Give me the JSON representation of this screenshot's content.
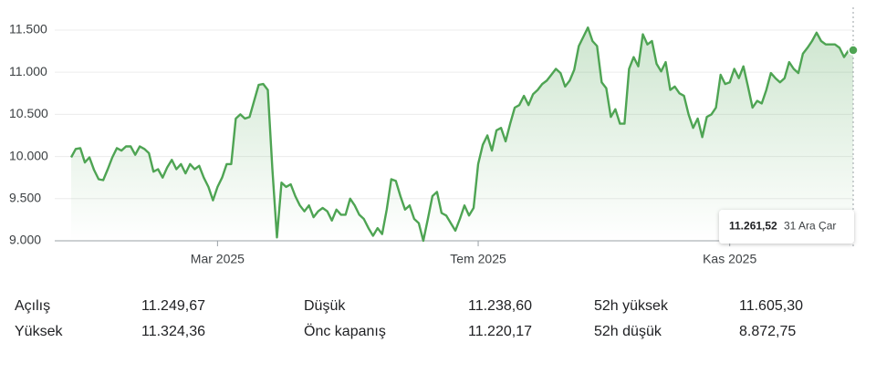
{
  "chart_data": {
    "type": "line",
    "categories": [
      null,
      null,
      null,
      null,
      null,
      null,
      null,
      null,
      null,
      null,
      null,
      null,
      null,
      null,
      null,
      null,
      null,
      null,
      null,
      null,
      null,
      null,
      null,
      null,
      null,
      null,
      null,
      null,
      null,
      null,
      null,
      null,
      "Mar 2025",
      null,
      null,
      null,
      null,
      null,
      null,
      null,
      null,
      null,
      null,
      null,
      null,
      null,
      null,
      null,
      null,
      null,
      null,
      null,
      null,
      null,
      null,
      null,
      null,
      null,
      null,
      null,
      null,
      null,
      null,
      null,
      null,
      null,
      null,
      null,
      null,
      null,
      null,
      null,
      null,
      null,
      null,
      null,
      null,
      null,
      null,
      null,
      null,
      null,
      null,
      null,
      null,
      null,
      null,
      null,
      null,
      "Tem 2025",
      null,
      null,
      null,
      null,
      null,
      null,
      null,
      null,
      null,
      null,
      null,
      null,
      null,
      null,
      null,
      null,
      null,
      null,
      null,
      null,
      null,
      null,
      null,
      null,
      null,
      null,
      null,
      null,
      null,
      null,
      null,
      null,
      null,
      null,
      null,
      null,
      null,
      null,
      null,
      null,
      null,
      null,
      null,
      null,
      null,
      null,
      null,
      null,
      null,
      null,
      null,
      null,
      null,
      null,
      "Kas 2025",
      null,
      null,
      null,
      null,
      null,
      null,
      null,
      null,
      null,
      null,
      null,
      null,
      null,
      null,
      null,
      null,
      null,
      null,
      null,
      null,
      null,
      null,
      null,
      null,
      null,
      null,
      null
    ],
    "series": [
      {
        "color": "#4ea453",
        "values": [
          9990,
          10090,
          10100,
          9930,
          9990,
          9840,
          9730,
          9720,
          9850,
          9990,
          10100,
          10070,
          10120,
          10120,
          10020,
          10120,
          10090,
          10040,
          9820,
          9850,
          9750,
          9870,
          9960,
          9850,
          9910,
          9800,
          9910,
          9850,
          9890,
          9750,
          9640,
          9480,
          9640,
          9750,
          9910,
          9910,
          10450,
          10500,
          10450,
          10470,
          10660,
          10850,
          10860,
          10790,
          9850,
          9040,
          9690,
          9640,
          9670,
          9530,
          9420,
          9350,
          9420,
          9280,
          9350,
          9390,
          9350,
          9240,
          9370,
          9310,
          9310,
          9500,
          9420,
          9310,
          9260,
          9150,
          9060,
          9150,
          9080,
          9370,
          9730,
          9710,
          9530,
          9370,
          9420,
          9260,
          9210,
          9000,
          9260,
          9530,
          9580,
          9330,
          9300,
          9210,
          9120,
          9260,
          9420,
          9300,
          9390,
          9910,
          10140,
          10250,
          10070,
          10310,
          10340,
          10180,
          10390,
          10580,
          10610,
          10720,
          10610,
          10740,
          10790,
          10860,
          10900,
          10970,
          11040,
          10990,
          10830,
          10900,
          11030,
          11310,
          11420,
          11530,
          11370,
          11310,
          10880,
          10810,
          10470,
          10560,
          10390,
          10390,
          11040,
          11180,
          11070,
          11450,
          11330,
          11370,
          11100,
          11010,
          11120,
          10790,
          10830,
          10750,
          10720,
          10500,
          10340,
          10450,
          10230,
          10470,
          10500,
          10580,
          10970,
          10860,
          10880,
          11040,
          10930,
          11070,
          10830,
          10580,
          10660,
          10630,
          10790,
          10990,
          10930,
          10880,
          10930,
          11120,
          11040,
          10990,
          11220,
          11290,
          11370,
          11470,
          11370,
          11330,
          11330,
          11330,
          11290,
          11180,
          11260,
          11261.52
        ]
      }
    ],
    "ylim": [
      9000,
      11700
    ],
    "yticks": [
      {
        "value": 9000,
        "label": "9.000"
      },
      {
        "value": 9500,
        "label": "9.500"
      },
      {
        "value": 10000,
        "label": "10.000"
      },
      {
        "value": 10500,
        "label": "10.500"
      },
      {
        "value": 11000,
        "label": "11.000"
      },
      {
        "value": 11500,
        "label": "11.500"
      }
    ],
    "grid": true,
    "tooltip": {
      "value": "11.261,52",
      "date": "31 Ara Çar"
    }
  },
  "stats": [
    [
      {
        "label": "Açılış",
        "value": "11.249,67"
      },
      {
        "label": "Yüksek",
        "value": "11.324,36"
      }
    ],
    [
      {
        "label": "Düşük",
        "value": "11.238,60"
      },
      {
        "label": "Önc kapanış",
        "value": "11.220,17"
      }
    ],
    [
      {
        "label": "52h yüksek",
        "value": "11.605,30"
      },
      {
        "label": "52h düşük",
        "value": "8.872,75"
      }
    ]
  ]
}
